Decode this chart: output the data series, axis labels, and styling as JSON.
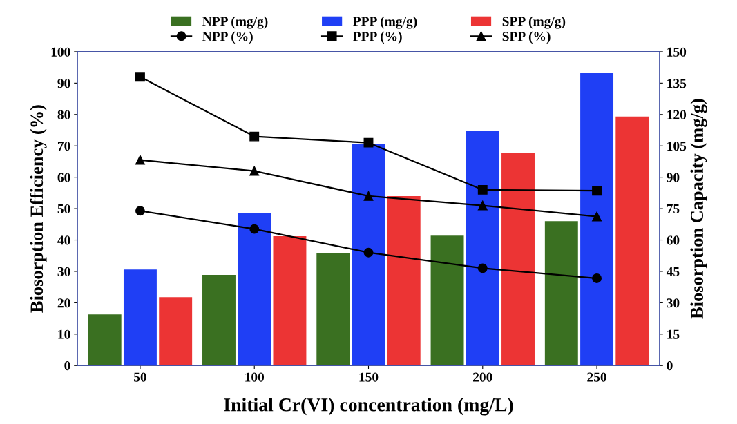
{
  "chart_data": {
    "type": "bar",
    "xlabel": "Initial Cr(VI) concentration (mg/L)",
    "ylabel": "Biosorption Efficiency (%)",
    "y2label": "Biosorption Capacity (mg/g)",
    "categories": [
      "50",
      "100",
      "150",
      "200",
      "250"
    ],
    "series": [
      {
        "name": "NPP (mg/g)",
        "axis": "y2",
        "color": "#3a7021",
        "values": [
          24.4,
          43.3,
          53.8,
          62.1,
          69.0
        ]
      },
      {
        "name": "NPP (%)",
        "type": "line",
        "color": "#000000",
        "marker": "circle",
        "values": [
          49.3,
          43.5,
          36.0,
          31.0,
          27.8
        ]
      },
      {
        "name": "PPP (mg/g)",
        "axis": "y2",
        "color": "#1f3ff5",
        "values": [
          45.9,
          73.0,
          106.0,
          112.3,
          139.7
        ]
      },
      {
        "name": "PPP (%)",
        "type": "line",
        "color": "#000000",
        "marker": "square",
        "values": [
          92.0,
          73.0,
          71.0,
          56.0,
          55.7
        ]
      },
      {
        "name": "SPP (mg/g)",
        "axis": "y2",
        "color": "#ec3434",
        "values": [
          32.7,
          61.8,
          81.0,
          101.4,
          119.0
        ]
      },
      {
        "name": "SPP (%)",
        "type": "line",
        "color": "#000000",
        "marker": "triangle",
        "values": [
          65.5,
          62.0,
          54.0,
          51.0,
          47.5
        ]
      }
    ],
    "ylim": [
      0,
      100
    ],
    "yticks": [
      0,
      10,
      20,
      30,
      40,
      50,
      60,
      70,
      80,
      90,
      100
    ],
    "y2lim": [
      0,
      150
    ],
    "y2ticks": [
      0,
      15,
      30,
      45,
      60,
      75,
      90,
      105,
      120,
      135,
      150
    ],
    "legend": "top",
    "grid": false,
    "line_style": "solid"
  }
}
